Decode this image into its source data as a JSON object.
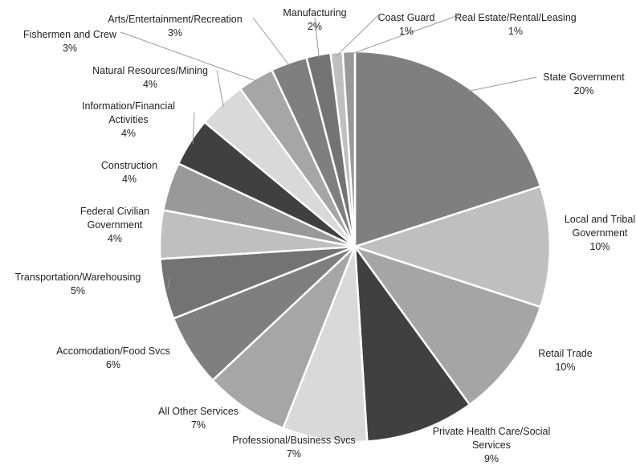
{
  "chart_data": {
    "type": "pie",
    "categories": [
      "State Government",
      "Local and Tribal Government",
      "Retail Trade",
      "Private Health Care/Social Services",
      "Professional/Business Svcs",
      "All Other Services",
      "Accomodation/Food Svcs",
      "Transportation/Warehousing",
      "Federal Civilian Government",
      "Construction",
      "Information/Financial Activities",
      "Natural Resources/Mining",
      "Fishermen and Crew",
      "Arts/Entertainment/Recreation",
      "Manufacturing",
      "Coast Guard",
      "Real Estate/Rental/Leasing"
    ],
    "values": [
      20,
      10,
      10,
      9,
      7,
      7,
      6,
      5,
      4,
      4,
      4,
      4,
      3,
      3,
      2,
      1,
      1
    ],
    "value_labels": [
      "20%",
      "10%",
      "10%",
      "9%",
      "7%",
      "7%",
      "6%",
      "5%",
      "4%",
      "4%",
      "4%",
      "4%",
      "3%",
      "3%",
      "2%",
      "1%",
      "1%"
    ],
    "colors": [
      "#7f7f7f",
      "#bfbfbf",
      "#a5a5a5",
      "#404040",
      "#d9d9d9",
      "#a6a6a6",
      "#7f7f7f",
      "#737373",
      "#bfbfbf",
      "#999999",
      "#404040",
      "#d9d9d9",
      "#a6a6a6",
      "#7f7f7f",
      "#737373",
      "#bfbfbf",
      "#999999"
    ]
  }
}
